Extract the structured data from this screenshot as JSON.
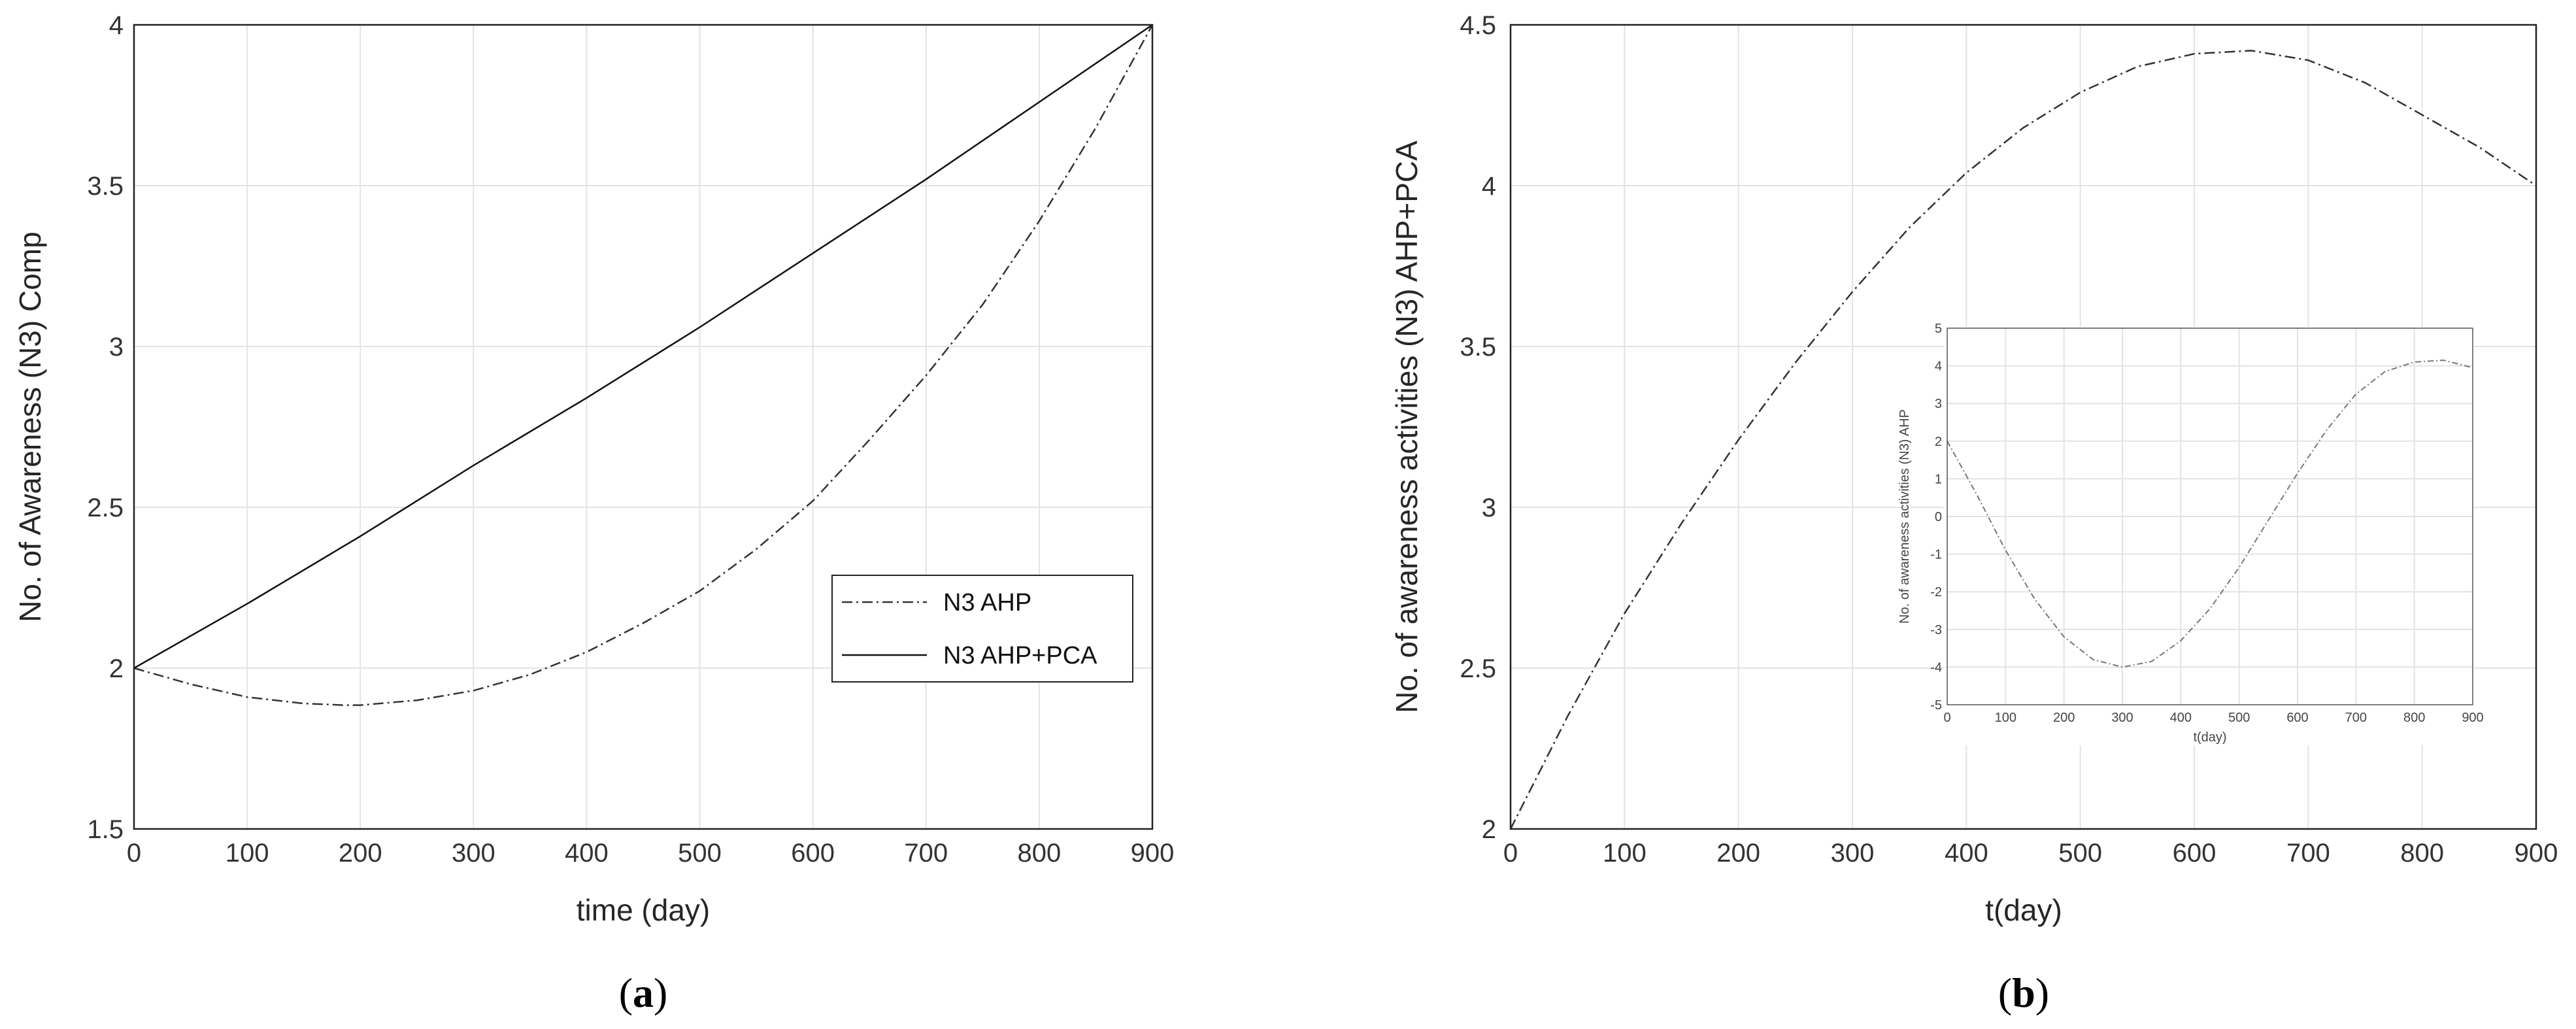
{
  "chart_data": [
    {
      "type": "line",
      "panel_label": "a",
      "xlabel": "time (day)",
      "ylabel": "No. of Awareness (N3) Comp",
      "xlim": [
        0,
        900
      ],
      "ylim": [
        1.5,
        4
      ],
      "xticks": [
        "0",
        "100",
        "200",
        "300",
        "400",
        "500",
        "600",
        "700",
        "800",
        "900"
      ],
      "yticks": [
        "1.5",
        "2",
        "2.5",
        "3",
        "3.5",
        "4"
      ],
      "grid": true,
      "legend_position": "center-right",
      "series": [
        {
          "name": "N3 AHP",
          "style": "dash-dot",
          "color": "#333333",
          "x": [
            0,
            50,
            100,
            150,
            185,
            200,
            250,
            300,
            350,
            400,
            450,
            500,
            550,
            600,
            650,
            700,
            750,
            800,
            850,
            900
          ],
          "y": [
            2.0,
            1.95,
            1.91,
            1.89,
            1.885,
            1.885,
            1.9,
            1.93,
            1.98,
            2.05,
            2.14,
            2.24,
            2.37,
            2.52,
            2.71,
            2.91,
            3.13,
            3.39,
            3.68,
            4.0
          ]
        },
        {
          "name": "N3 AHP+PCA",
          "style": "solid",
          "color": "#111111",
          "x": [
            0,
            100,
            200,
            300,
            400,
            500,
            600,
            700,
            800,
            900
          ],
          "y": [
            2.0,
            2.2,
            2.41,
            2.63,
            2.84,
            3.06,
            3.29,
            3.52,
            3.76,
            4.0
          ]
        }
      ]
    },
    {
      "type": "line",
      "panel_label": "b",
      "xlabel": "t(day)",
      "ylabel": "No. of awareness activities (N3) AHP+PCA",
      "xlim": [
        0,
        900
      ],
      "ylim": [
        2,
        4.5
      ],
      "xticks": [
        "0",
        "100",
        "200",
        "300",
        "400",
        "500",
        "600",
        "700",
        "800",
        "900"
      ],
      "yticks": [
        "2",
        "2.5",
        "3",
        "3.5",
        "4",
        "4.5"
      ],
      "grid": true,
      "series": [
        {
          "style": "dash-dot",
          "color": "#333333",
          "x": [
            0,
            50,
            100,
            150,
            200,
            250,
            300,
            350,
            400,
            450,
            500,
            550,
            600,
            650,
            700,
            750,
            800,
            850,
            900
          ],
          "y": [
            2.0,
            2.35,
            2.67,
            2.95,
            3.21,
            3.45,
            3.67,
            3.87,
            4.04,
            4.18,
            4.29,
            4.37,
            4.41,
            4.42,
            4.39,
            4.32,
            4.22,
            4.12,
            4.0
          ]
        }
      ],
      "inset": {
        "xlabel": "t(day)",
        "ylabel": "No. of awareness activities (N3) AHP",
        "xlim": [
          0,
          900
        ],
        "ylim": [
          -5,
          5
        ],
        "xticks": [
          "0",
          "100",
          "200",
          "300",
          "400",
          "500",
          "600",
          "700",
          "800",
          "900"
        ],
        "yticks": [
          "-5",
          "-4",
          "-3",
          "-2",
          "-1",
          "0",
          "1",
          "2",
          "3",
          "4",
          "5"
        ],
        "grid": true,
        "series": [
          {
            "style": "dash-dot",
            "color": "#777777",
            "x": [
              0,
              50,
              100,
              150,
              200,
              250,
              300,
              350,
              400,
              450,
              500,
              550,
              600,
              650,
              700,
              750,
              800,
              850,
              900
            ],
            "y": [
              2.0,
              0.6,
              -0.9,
              -2.2,
              -3.2,
              -3.8,
              -4.0,
              -3.85,
              -3.3,
              -2.45,
              -1.35,
              -0.1,
              1.15,
              2.3,
              3.25,
              3.85,
              4.1,
              4.15,
              3.95
            ]
          }
        ]
      }
    }
  ]
}
